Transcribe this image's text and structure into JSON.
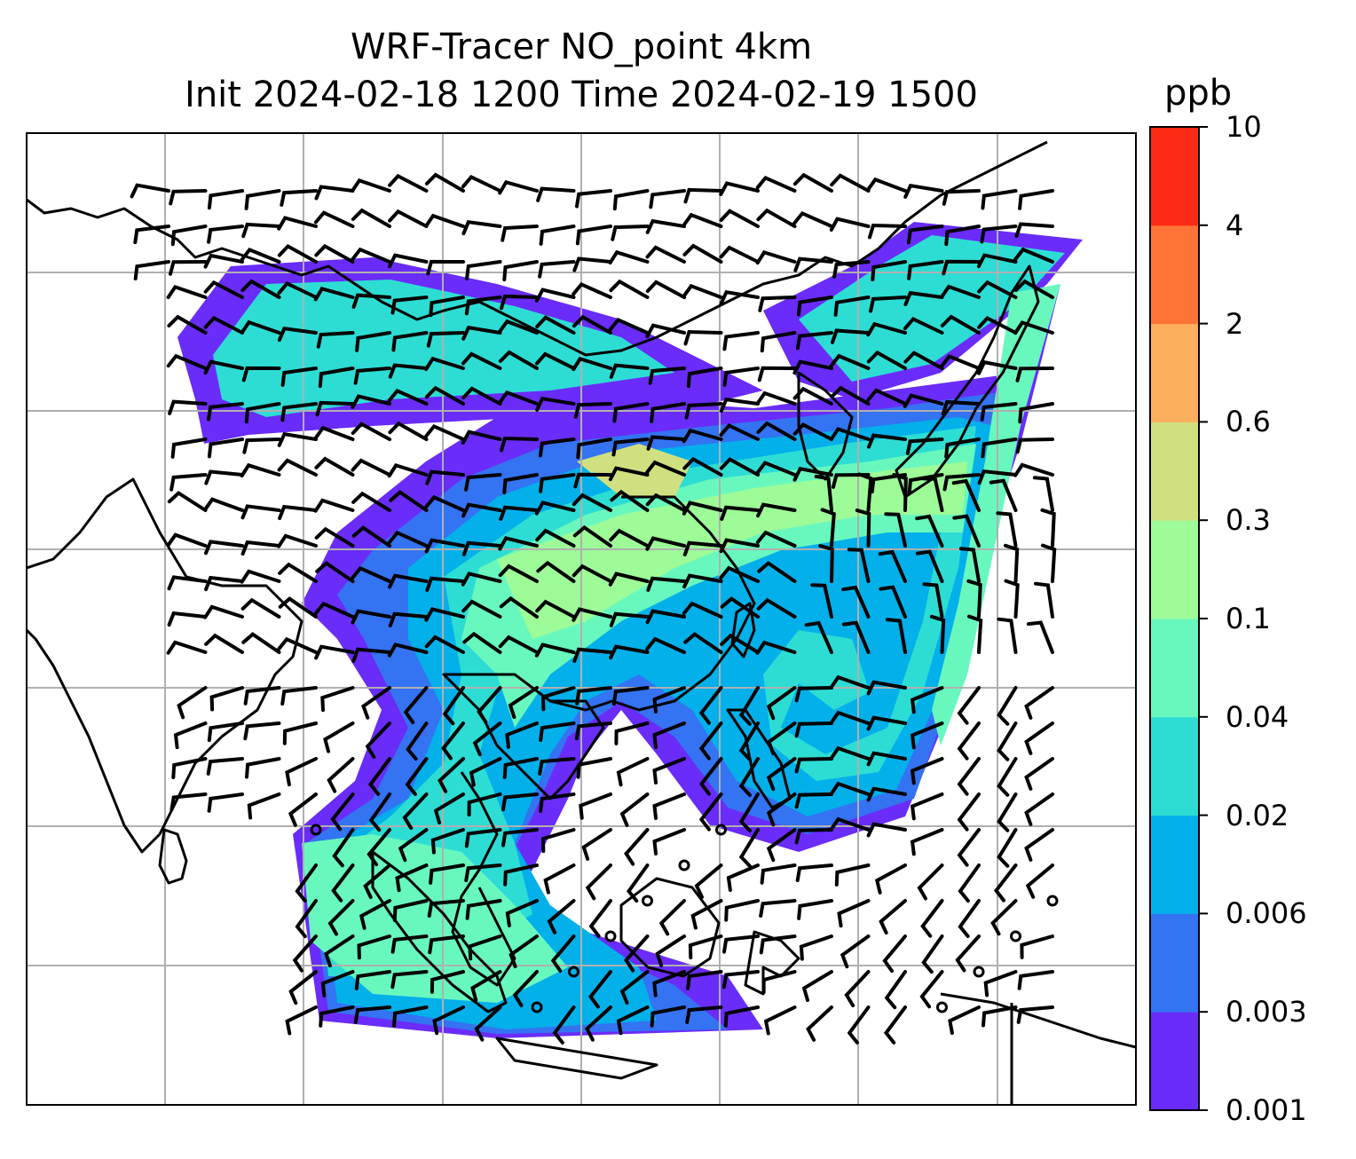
{
  "title_line1": "WRF-Tracer NO_point 4km",
  "title_line2": "Init 2024-02-18 1200 Time 2024-02-19 1500",
  "colorbar": {
    "unit": "ppb",
    "levels": [
      "0.001",
      "0.003",
      "0.006",
      "0.02",
      "0.04",
      "0.1",
      "0.3",
      "0.6",
      "2",
      "4",
      "10"
    ],
    "colors": [
      "#6a2cf8",
      "#3473f2",
      "#03b0ea",
      "#2dddd4",
      "#68f8be",
      "#9dfb98",
      "#d0e081",
      "#fdaf5f",
      "#fe7336",
      "#fd2a15"
    ]
  },
  "map": {
    "gridlines": true,
    "background": "#ffffff",
    "coastline_color": "#000000",
    "barb_color": "#000000"
  }
}
